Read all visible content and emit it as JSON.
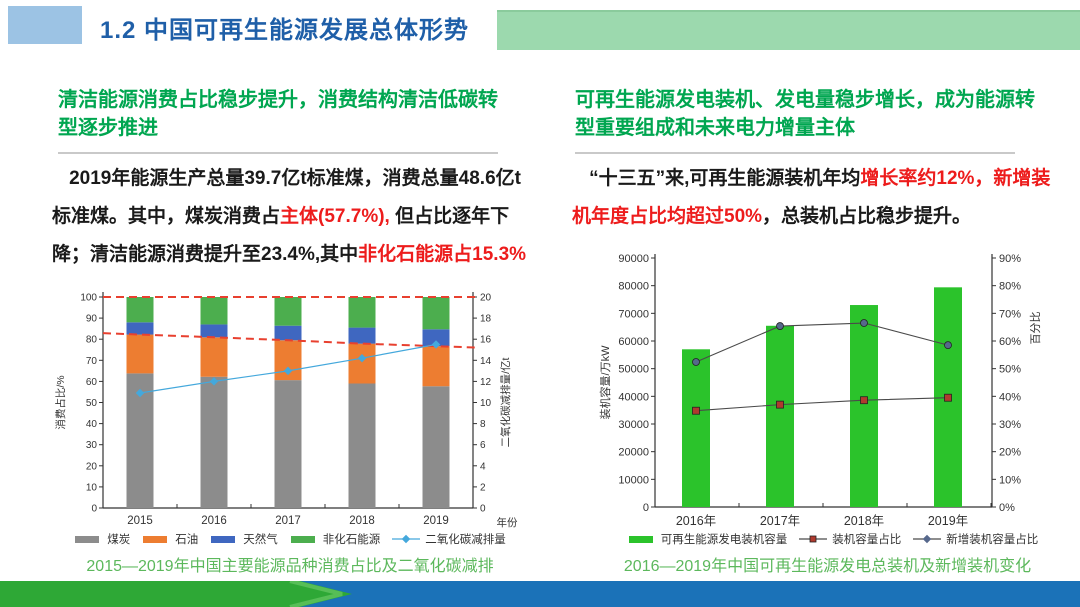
{
  "header": {
    "title": "1.2 中国可再生能源发展总体形势"
  },
  "left": {
    "heading": "清洁能源消费占比稳步提升，消费结构清洁低碳转型逐步推进",
    "paragraph": {
      "seg1": "2019年能源生产总量39.7亿t标准煤，消费总量48.6亿t标准煤。其中，煤炭消费占",
      "seg2_red": "主体(57.7%),",
      "seg3": " 但占比逐年下降；清洁能源消费提升至23.4%,其中",
      "seg4_red": "非化石能源占15.3%"
    }
  },
  "right": {
    "heading": "可再生能源发电装机、发电量稳步增长，成为能源转型重要组成和未来电力增量主体",
    "paragraph": {
      "seg1": "“十三五”来,可再生能源装机年均",
      "seg2_red": "增长率约12%，新增装机年度占比均超过50%",
      "seg3": "，总装机占比稳步提升。"
    }
  },
  "colors": {
    "title_blue": "#1F5FA8",
    "heading_green": "#00A650",
    "caption_green": "#5CB85C",
    "emphasis_red": "#ED1C1C",
    "header_chip": "#9CC3E4",
    "header_band": "#9CD9AE",
    "footer_green": "#2EA836",
    "footer_blue": "#1B72B8"
  },
  "chart_data": [
    {
      "type": "bar",
      "subtype": "stacked-bars-with-line",
      "title": "2015—2019年中国主要能源品种消费占比及二氧化碳减排",
      "categories": [
        "2015",
        "2016",
        "2017",
        "2018",
        "2019"
      ],
      "series": [
        {
          "name": "煤炭",
          "type": "bar",
          "color": "#8C8C8C",
          "values": [
            63.8,
            62.2,
            60.6,
            59.0,
            57.7
          ]
        },
        {
          "name": "石油",
          "type": "bar",
          "color": "#ED7D31",
          "values": [
            18.4,
            18.7,
            18.9,
            18.9,
            19.0
          ]
        },
        {
          "name": "天然气",
          "type": "bar",
          "color": "#3F67C0",
          "values": [
            5.8,
            6.1,
            6.9,
            7.6,
            8.0
          ]
        },
        {
          "name": "非化石能源",
          "type": "bar",
          "color": "#4CAE4E",
          "values": [
            12.0,
            13.0,
            13.6,
            14.5,
            15.3
          ]
        },
        {
          "name": "二氧化碳减排量",
          "type": "line",
          "axis": "right",
          "marker": "diamond",
          "color": "#44A8DC",
          "values": [
            10.9,
            12.0,
            13.0,
            14.2,
            15.5
          ]
        }
      ],
      "annotations": [
        {
          "name": "100%上限参考线",
          "type": "dashed-line",
          "color": "#E8402F",
          "axis": "left",
          "values": [
            100,
            100,
            100,
            100,
            100
          ]
        },
        {
          "name": "煤炭加石油占比趋势线",
          "type": "dashed-line",
          "color": "#E8402F",
          "axis": "left",
          "values": [
            82.2,
            80.9,
            79.5,
            77.9,
            76.7
          ]
        }
      ],
      "xlabel": "年份",
      "ylabel_left": "消费占比/%",
      "ylabel_right": "二氧化碳减排量/亿t",
      "ylim_left": [
        0,
        100
      ],
      "ytick_left": 10,
      "ylim_right": [
        0,
        20
      ],
      "ytick_right": 2,
      "grid": false,
      "legend_position": "bottom"
    },
    {
      "type": "bar",
      "subtype": "bars-with-two-lines",
      "title": "2016—2019年中国可再生能源发电总装机及新增装机变化",
      "categories": [
        "2016年",
        "2017年",
        "2018年",
        "2019年"
      ],
      "series": [
        {
          "name": "可再生能源发电装机容量",
          "type": "bar",
          "color": "#2BC32B",
          "values": [
            57000,
            65500,
            73000,
            79400
          ]
        },
        {
          "name": "装机容量占比",
          "type": "line",
          "axis": "right",
          "marker": "square",
          "color": "#B03A2E",
          "line_color": "#4a4a4a",
          "values": [
            34.8,
            37.0,
            38.6,
            39.5
          ]
        },
        {
          "name": "新增装机容量占比",
          "type": "line",
          "axis": "right",
          "marker": "circle",
          "legend_marker": "diamond",
          "color": "#56688C",
          "line_color": "#4a4a4a",
          "values": [
            52.4,
            65.4,
            66.5,
            58.5
          ]
        }
      ],
      "ylabel_left": "装机容量/万kW",
      "ylabel_right": "百分比",
      "ylim_left": [
        0,
        90000
      ],
      "ytick_left": 10000,
      "ylim_right": [
        0,
        90
      ],
      "ytick_right": 10,
      "ytick_right_format": "percent",
      "grid": false,
      "legend_position": "bottom"
    }
  ]
}
